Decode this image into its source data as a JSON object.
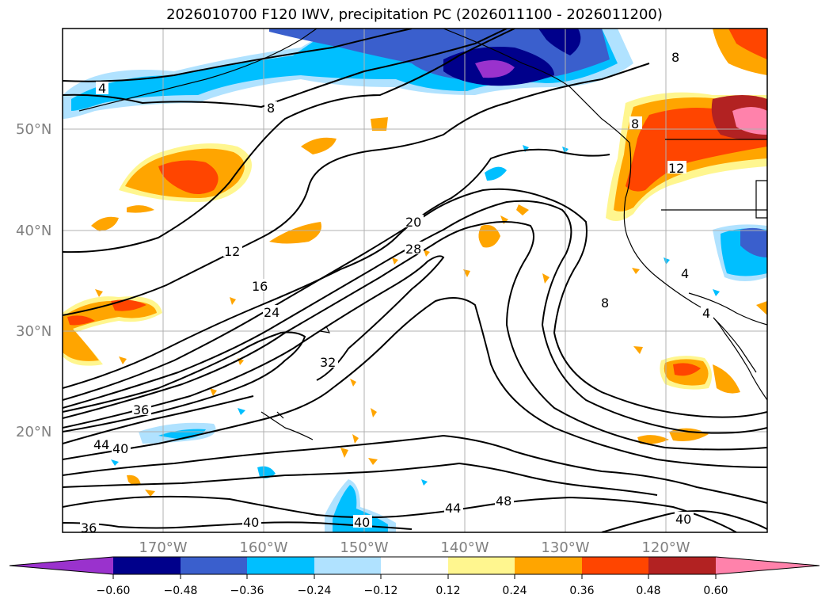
{
  "title": "2026010700 F120 IWV, precipitation PC (2026011100 - 2026011200)",
  "lat_labels": [
    "50°N",
    "40°N",
    "30°N",
    "20°N"
  ],
  "lon_labels": [
    "170°W",
    "160°W",
    "150°W",
    "140°W",
    "130°W",
    "120°W"
  ],
  "contour_labels": [
    "4",
    "8",
    "12",
    "16",
    "20",
    "24",
    "28",
    "32",
    "36",
    "40",
    "44",
    "48",
    "36",
    "40",
    "44",
    "40",
    "8",
    "4",
    "4",
    "8",
    "12",
    "8",
    "40"
  ],
  "colorbar": {
    "ticks": [
      "−0.60",
      "−0.48",
      "−0.36",
      "−0.24",
      "−0.12",
      "0.12",
      "0.24",
      "0.36",
      "0.48",
      "0.60"
    ],
    "colors": [
      "#9a32cd",
      "#00008b",
      "#3a5fcd",
      "#00bfff",
      "#b0e2ff",
      "#ffffff",
      "#fff68f",
      "#ffa500",
      "#ff4500",
      "#b22222",
      "#ff82ab"
    ]
  },
  "map_data": {
    "variable_contours": "IWV",
    "variable_fill": "precipitation PC",
    "lat_range": [
      "10°N",
      "60°N"
    ],
    "lon_range": [
      "178°W",
      "108°W"
    ],
    "gridlines": true
  }
}
